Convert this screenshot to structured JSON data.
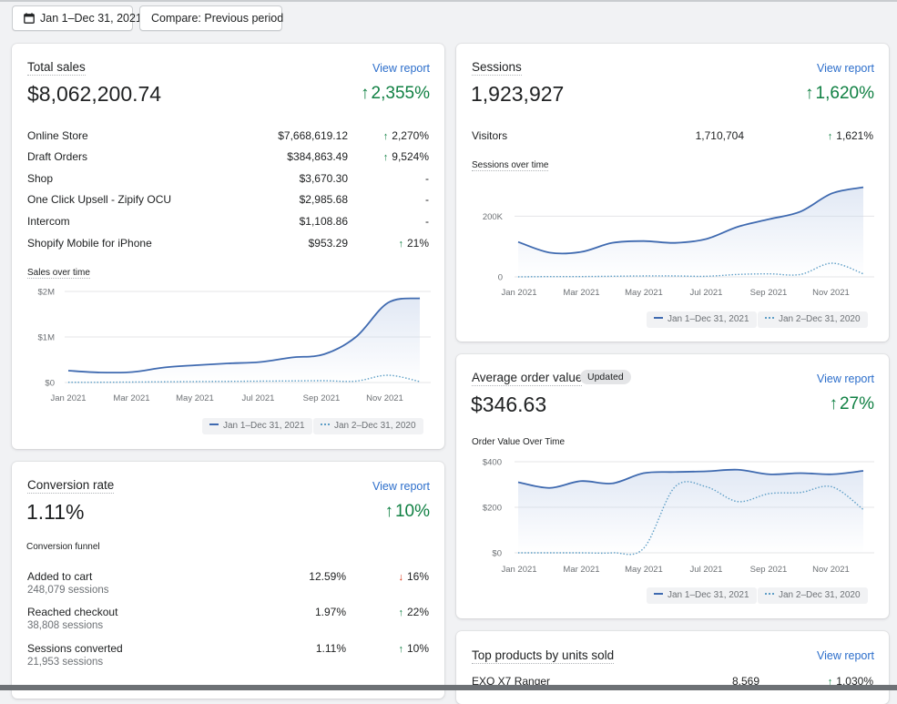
{
  "date_picker": {
    "label": "Jan 1–Dec 31, 2021",
    "icon": "calendar-icon"
  },
  "compare_button": {
    "label": "Compare: Previous period"
  },
  "legend": {
    "current": "Jan 1–Dec 31, 2021",
    "previous": "Jan 2–Dec 31, 2020"
  },
  "colors": {
    "current": "#3f6ab0",
    "previous": "#5f9fc7",
    "positive": "#108043",
    "negative": "#d82c0d",
    "link": "#2c6ecb"
  },
  "total_sales": {
    "title": "Total sales",
    "view_report": "View report",
    "value": "$8,062,200.74",
    "change": "2,355%",
    "rows": [
      {
        "label": "Online Store",
        "value": "$7,668,619.12",
        "change": "2,270%",
        "trend": "up"
      },
      {
        "label": "Draft Orders",
        "value": "$384,863.49",
        "change": "9,524%",
        "trend": "up"
      },
      {
        "label": "Shop",
        "value": "$3,670.30",
        "change": "-",
        "trend": "none"
      },
      {
        "label": "One Click Upsell - Zipify OCU",
        "value": "$2,985.68",
        "change": "-",
        "trend": "none"
      },
      {
        "label": "Intercom",
        "value": "$1,108.86",
        "change": "-",
        "trend": "none"
      },
      {
        "label": "Shopify Mobile for iPhone",
        "value": "$953.29",
        "change": "21%",
        "trend": "up"
      }
    ],
    "chart_label": "Sales over time"
  },
  "sessions": {
    "title": "Sessions",
    "view_report": "View report",
    "value": "1,923,927",
    "change": "1,620%",
    "row": {
      "label": "Visitors",
      "value": "1,710,704",
      "change": "1,621%"
    },
    "chart_label": "Sessions over time"
  },
  "conversion_rate": {
    "title": "Conversion rate",
    "view_report": "View report",
    "value": "1.11%",
    "change": "10%",
    "funnel_label": "Conversion funnel",
    "rows": [
      {
        "label": "Added to cart",
        "sub": "248,079 sessions",
        "value": "12.59%",
        "change": "16%",
        "trend": "down"
      },
      {
        "label": "Reached checkout",
        "sub": "38,808 sessions",
        "value": "1.97%",
        "change": "22%",
        "trend": "up"
      },
      {
        "label": "Sessions converted",
        "sub": "21,953 sessions",
        "value": "1.11%",
        "change": "10%",
        "trend": "up"
      }
    ]
  },
  "average_order_value": {
    "title": "Average order value",
    "badge": "Updated",
    "view_report": "View report",
    "value": "$346.63",
    "change": "27%",
    "chart_label": "Order Value Over Time"
  },
  "top_products": {
    "title": "Top products by units sold",
    "view_report": "View report",
    "rows": [
      {
        "label": "EXO X7 Ranger",
        "value": "8,569",
        "change": "1,030%"
      }
    ]
  },
  "chart_data": [
    {
      "type": "area",
      "title": "Sales over time",
      "x": [
        "Jan 2021",
        "Feb 2021",
        "Mar 2021",
        "Apr 2021",
        "May 2021",
        "Jun 2021",
        "Jul 2021",
        "Aug 2021",
        "Sep 2021",
        "Oct 2021",
        "Nov 2021",
        "Dec 2021"
      ],
      "x_tick_labels": [
        "Jan 2021",
        "Mar 2021",
        "May 2021",
        "Jul 2021",
        "Sep 2021",
        "Nov 2021"
      ],
      "y_tick_labels": [
        "$0",
        "$1M",
        "$2M"
      ],
      "ylim": [
        0,
        2000000
      ],
      "series": [
        {
          "name": "Jan 1–Dec 31, 2021",
          "style": "solid",
          "values": [
            260000,
            220000,
            230000,
            330000,
            380000,
            420000,
            450000,
            550000,
            620000,
            1000000,
            1750000,
            1850000
          ]
        },
        {
          "name": "Jan 2–Dec 31, 2020",
          "style": "dotted",
          "values": [
            5000,
            5000,
            10000,
            15000,
            20000,
            25000,
            30000,
            35000,
            40000,
            30000,
            160000,
            20000
          ]
        }
      ]
    },
    {
      "type": "area",
      "title": "Sessions over time",
      "x": [
        "Jan 2021",
        "Feb 2021",
        "Mar 2021",
        "Apr 2021",
        "May 2021",
        "Jun 2021",
        "Jul 2021",
        "Aug 2021",
        "Sep 2021",
        "Oct 2021",
        "Nov 2021",
        "Dec 2021"
      ],
      "x_tick_labels": [
        "Jan 2021",
        "Mar 2021",
        "May 2021",
        "Jul 2021",
        "Sep 2021",
        "Nov 2021"
      ],
      "y_tick_labels": [
        "0",
        "200K"
      ],
      "ylim": [
        0,
        300000
      ],
      "series": [
        {
          "name": "Jan 1–Dec 31, 2021",
          "style": "solid",
          "values": [
            115000,
            80000,
            82000,
            112000,
            118000,
            112000,
            125000,
            165000,
            190000,
            215000,
            275000,
            295000
          ]
        },
        {
          "name": "Jan 2–Dec 31, 2020",
          "style": "dotted",
          "values": [
            0,
            1000,
            1000,
            2000,
            3000,
            3000,
            2000,
            8000,
            10000,
            8000,
            45000,
            10000
          ]
        }
      ]
    },
    {
      "type": "area",
      "title": "Order Value Over Time",
      "x": [
        "Jan 2021",
        "Feb 2021",
        "Mar 2021",
        "Apr 2021",
        "May 2021",
        "Jun 2021",
        "Jul 2021",
        "Aug 2021",
        "Sep 2021",
        "Oct 2021",
        "Nov 2021",
        "Dec 2021"
      ],
      "x_tick_labels": [
        "Jan 2021",
        "Mar 2021",
        "May 2021",
        "Jul 2021",
        "Sep 2021",
        "Nov 2021"
      ],
      "y_tick_labels": [
        "$0",
        "$200",
        "$400"
      ],
      "ylim": [
        0,
        400
      ],
      "series": [
        {
          "name": "Jan 1–Dec 31, 2021",
          "style": "solid",
          "values": [
            310,
            285,
            315,
            305,
            350,
            355,
            358,
            365,
            345,
            350,
            345,
            360
          ]
        },
        {
          "name": "Jan 2–Dec 31, 2020",
          "style": "dotted",
          "values": [
            0,
            0,
            0,
            0,
            20,
            290,
            290,
            225,
            260,
            265,
            290,
            190
          ]
        }
      ]
    }
  ]
}
